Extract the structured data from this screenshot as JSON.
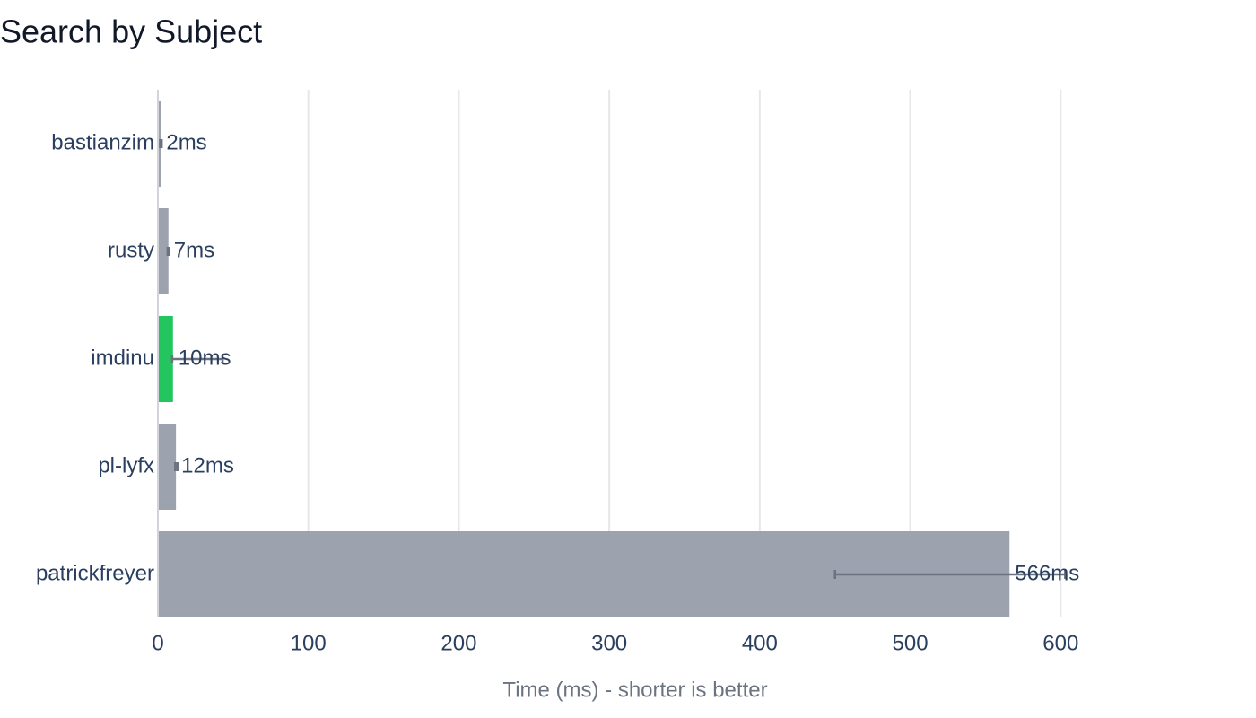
{
  "chart_data": {
    "type": "bar",
    "orientation": "horizontal",
    "title": "Search by Subject",
    "x_label": "Time (ms) - shorter is better",
    "categories": [
      "bastianzim",
      "rusty",
      "imdinu",
      "pl-lyfx",
      "patrickfreyer"
    ],
    "values": [
      2,
      7,
      10,
      12,
      566
    ],
    "value_labels": [
      "2ms",
      "7ms",
      "10ms",
      "12ms",
      "566ms"
    ],
    "error_minus": [
      0.5,
      0.5,
      0.5,
      0.5,
      116
    ],
    "error_plus": [
      0.5,
      0.5,
      33,
      1,
      37
    ],
    "colors": [
      "#9ca3af",
      "#9ca3af",
      "#22c55e",
      "#9ca3af",
      "#9ca3af"
    ],
    "error_color": "#6b7280",
    "xlim": [
      0,
      700
    ],
    "xticks": [
      0,
      100,
      200,
      300,
      400,
      500,
      600
    ],
    "grid": true
  }
}
